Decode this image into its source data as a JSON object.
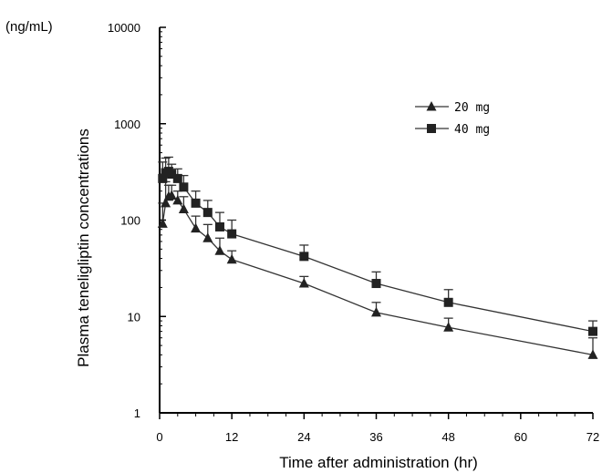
{
  "chart_data": {
    "type": "line",
    "xlabel": "Time after administration (hr)",
    "ylabel": "Plasma teneligliptin concentrations",
    "yunit": "(ng/mL)",
    "xlim": [
      0,
      72
    ],
    "ylim": [
      1,
      10000
    ],
    "yscale": "log",
    "xticks": [
      0,
      12,
      24,
      36,
      48,
      60,
      72
    ],
    "yticks": [
      1,
      10,
      100,
      1000,
      10000
    ],
    "legend_position": "top-right",
    "series": [
      {
        "name": "20 mg",
        "marker": "triangle",
        "x": [
          0.5,
          1,
          1.5,
          2,
          3,
          4,
          6,
          8,
          10,
          12,
          24,
          36,
          48,
          72
        ],
        "y": [
          92,
          150,
          175,
          180,
          160,
          130,
          82,
          65,
          48,
          39,
          22,
          11,
          7.7,
          4
        ],
        "err_upper": [
          150,
          250,
          230,
          230,
          200,
          175,
          110,
          90,
          65,
          48,
          26,
          14,
          9.6,
          6
        ]
      },
      {
        "name": "40 mg",
        "marker": "square",
        "x": [
          0.5,
          1,
          1.5,
          2,
          3,
          4,
          6,
          8,
          10,
          12,
          24,
          36,
          48,
          72
        ],
        "y": [
          270,
          310,
          320,
          300,
          270,
          220,
          150,
          120,
          85,
          72,
          42,
          22,
          14,
          7
        ],
        "err_upper": [
          400,
          440,
          450,
          380,
          340,
          290,
          200,
          160,
          120,
          100,
          55,
          29,
          19,
          9
        ]
      }
    ]
  }
}
